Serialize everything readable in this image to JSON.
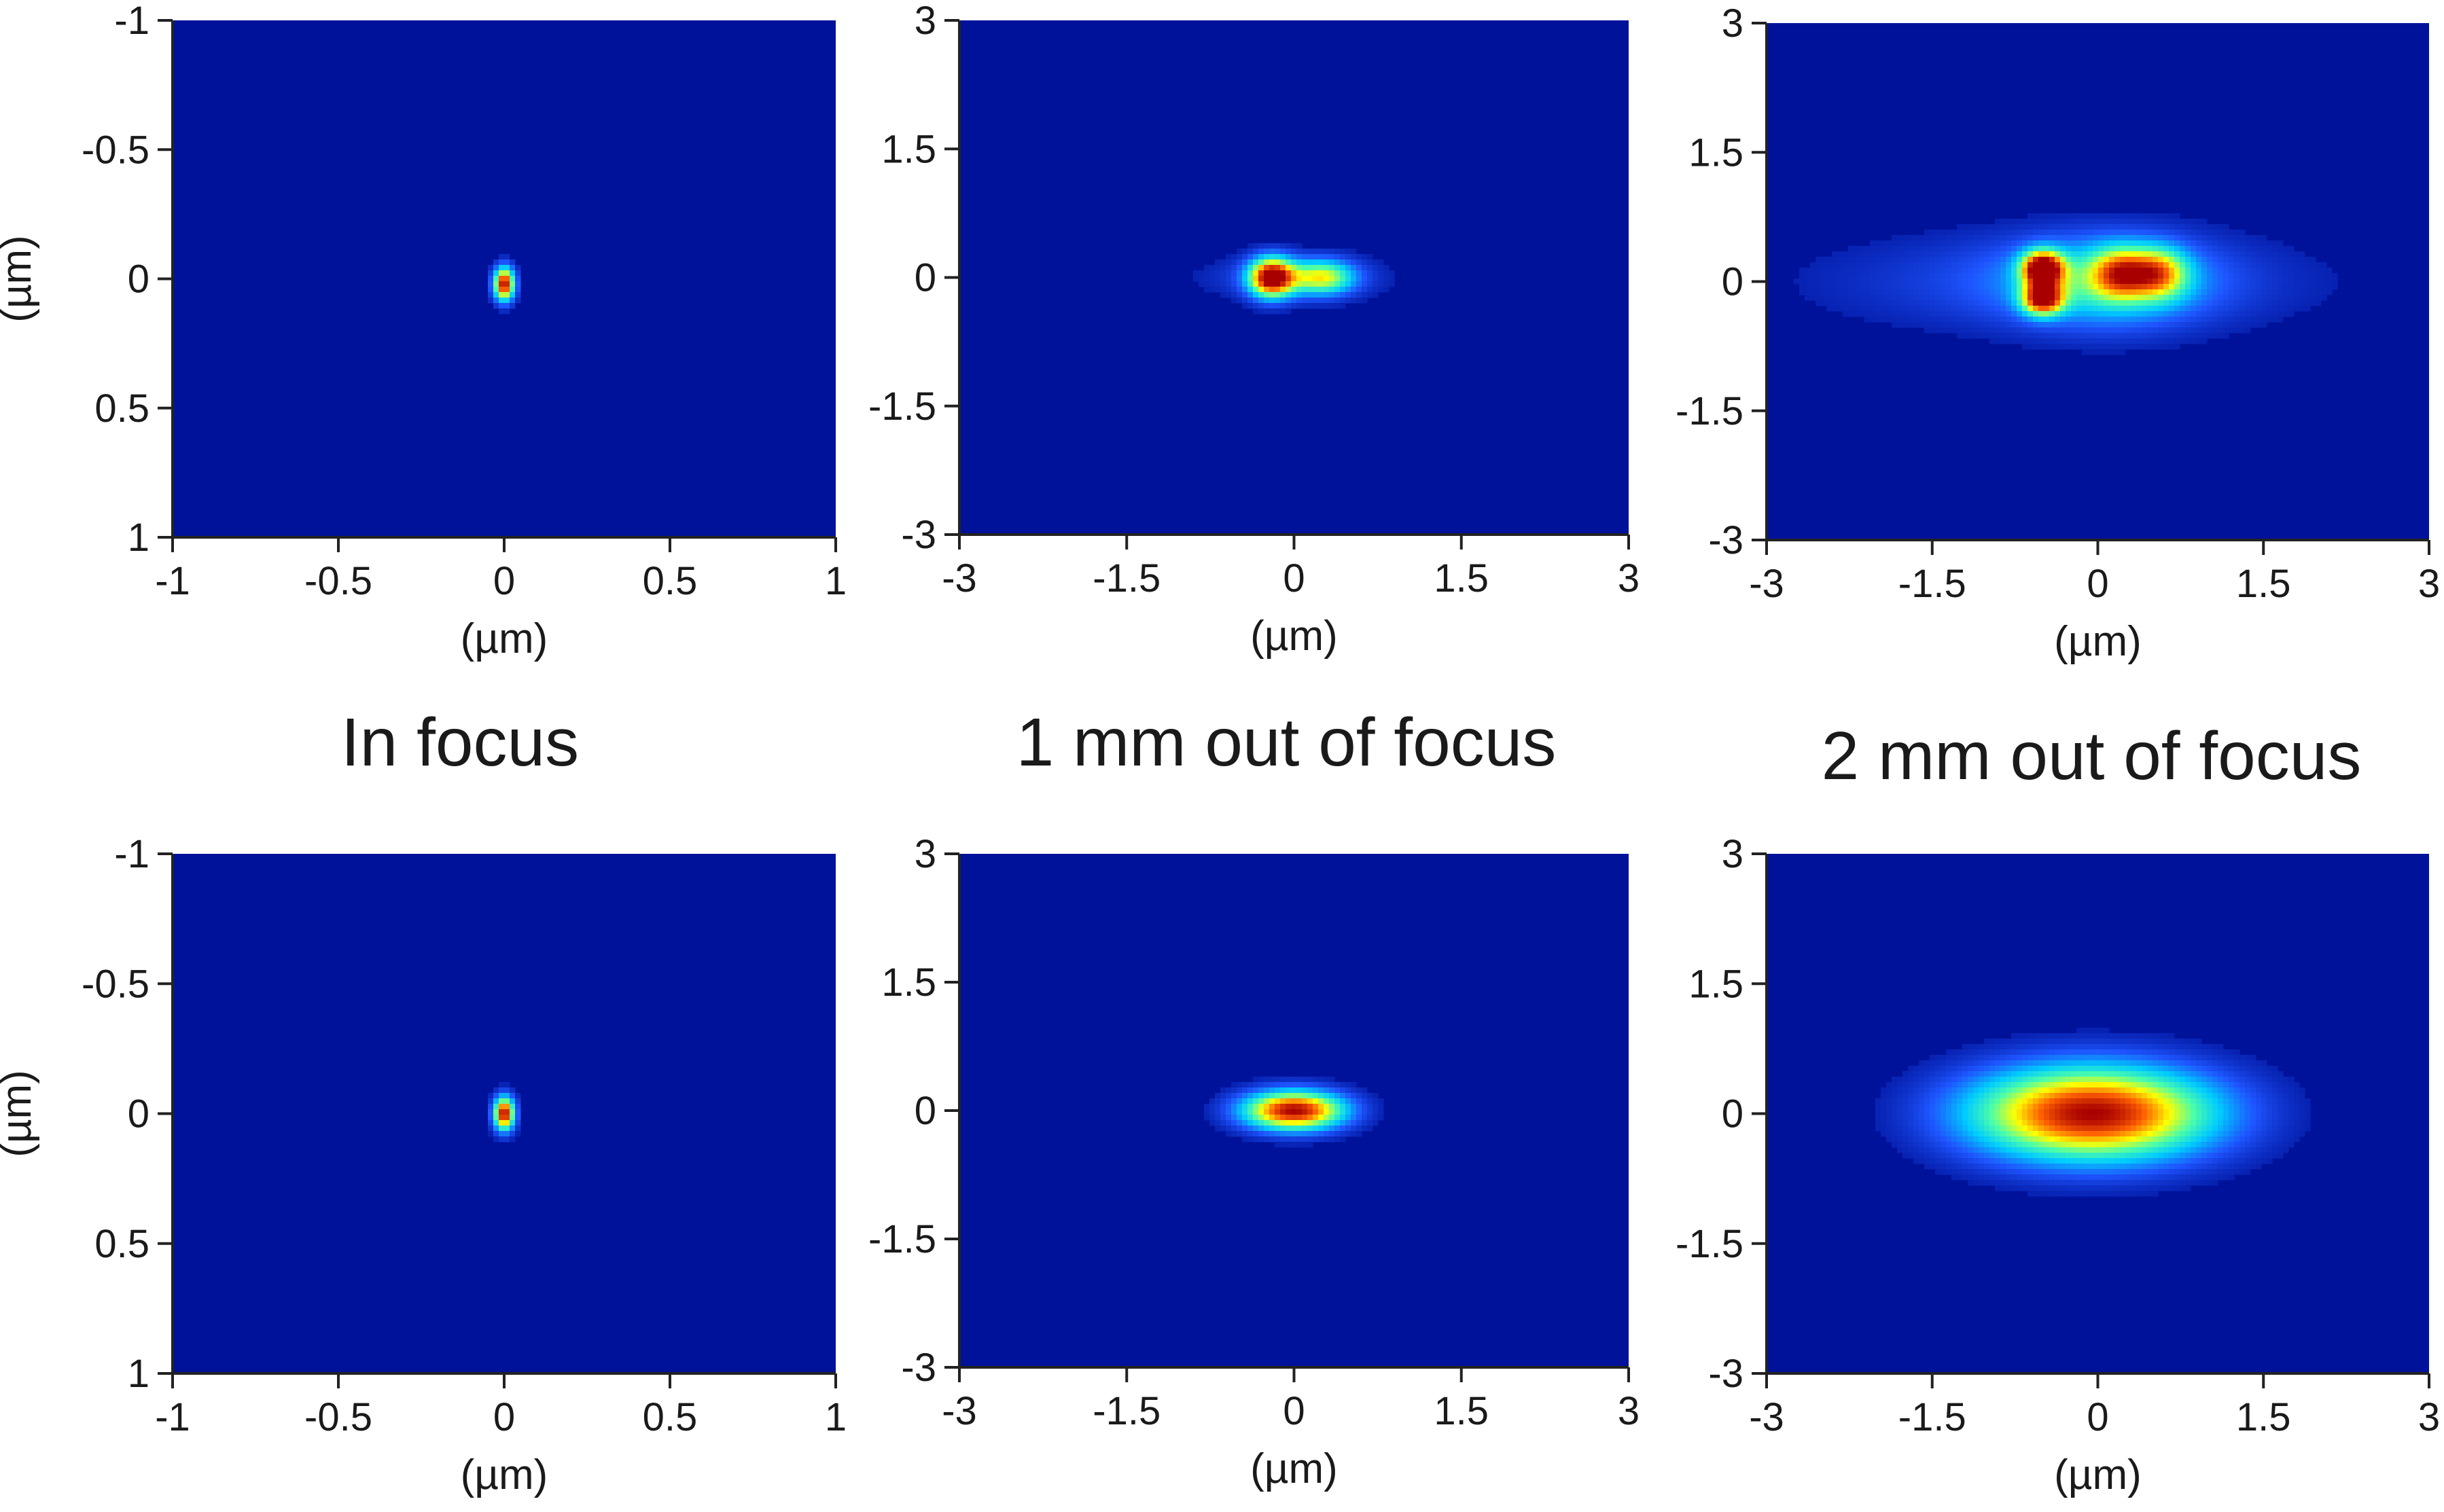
{
  "chart_data": [
    {
      "type": "heatmap",
      "title": "",
      "panel": "top-left",
      "xlabel": "(µm)",
      "ylabel": "(µm)",
      "xlim": [
        -1,
        1
      ],
      "ylim": [
        -1,
        1
      ],
      "y_inverted": true,
      "xticks": [
        "-1",
        "-0.5",
        "0",
        "0.5",
        "1"
      ],
      "yticks": [
        "-1",
        "-0.5",
        "0",
        "0.5",
        "1"
      ],
      "spots": [
        {
          "x": 0.0,
          "y": 0.02,
          "sx": 0.022,
          "sy": 0.045,
          "peak": 1.0
        }
      ]
    },
    {
      "type": "heatmap",
      "title": "",
      "panel": "top-middle",
      "xlabel": "(µm)",
      "ylabel": "",
      "xlim": [
        -3,
        3
      ],
      "ylim": [
        -3,
        3
      ],
      "y_inverted": false,
      "xticks": [
        "-3",
        "-1.5",
        "0",
        "1.5",
        "3"
      ],
      "yticks": [
        "3",
        "1.5",
        "0",
        "-1.5",
        "-3"
      ],
      "spots": [
        {
          "x": -0.2,
          "y": 0.0,
          "sx": 0.14,
          "sy": 0.16,
          "peak": 1.0
        },
        {
          "x": 0.25,
          "y": 0.0,
          "sx": 0.2,
          "sy": 0.14,
          "peak": 0.55
        },
        {
          "x": 0.0,
          "y": 0.0,
          "sx": 0.55,
          "sy": 0.18,
          "peak": 0.15
        }
      ]
    },
    {
      "type": "heatmap",
      "title": "",
      "panel": "top-right",
      "xlabel": "(µm)",
      "ylabel": "",
      "xlim": [
        -3,
        3
      ],
      "ylim": [
        -3,
        3
      ],
      "y_inverted": false,
      "xticks": [
        "-3",
        "-1.5",
        "0",
        "1.5",
        "3"
      ],
      "yticks": [
        "3",
        "1.5",
        "0",
        "-1.5",
        "-3"
      ],
      "spots": [
        {
          "x": -0.5,
          "y": 0.15,
          "sx": 0.13,
          "sy": 0.14,
          "peak": 1.0
        },
        {
          "x": -0.5,
          "y": -0.2,
          "sx": 0.13,
          "sy": 0.13,
          "peak": 0.85
        },
        {
          "x": 0.2,
          "y": 0.1,
          "sx": 0.18,
          "sy": 0.2,
          "peak": 0.5
        },
        {
          "x": 0.55,
          "y": 0.1,
          "sx": 0.18,
          "sy": 0.2,
          "peak": 0.5
        },
        {
          "x": 0.1,
          "y": 0.0,
          "sx": 0.6,
          "sy": 0.35,
          "peak": 0.35
        },
        {
          "x": -0.3,
          "y": 0.0,
          "sx": 1.5,
          "sy": 0.4,
          "peak": 0.15
        }
      ]
    },
    {
      "type": "heatmap",
      "title": "",
      "panel": "bottom-left",
      "xlabel": "(µm)",
      "ylabel": "(µm)",
      "xlim": [
        -1,
        1
      ],
      "ylim": [
        -1,
        1
      ],
      "y_inverted": true,
      "xticks": [
        "-1",
        "-0.5",
        "0",
        "0.5",
        "1"
      ],
      "yticks": [
        "-1",
        "-0.5",
        "0",
        "0.5",
        "1"
      ],
      "spots": [
        {
          "x": 0.0,
          "y": 0.0,
          "sx": 0.022,
          "sy": 0.045,
          "peak": 1.0
        }
      ]
    },
    {
      "type": "heatmap",
      "title": "",
      "panel": "bottom-middle",
      "xlabel": "(µm)",
      "ylabel": "",
      "xlim": [
        -3,
        3
      ],
      "ylim": [
        -3,
        3
      ],
      "y_inverted": false,
      "xticks": [
        "-3",
        "-1.5",
        "0",
        "1.5",
        "3"
      ],
      "yticks": [
        "3",
        "1.5",
        "0",
        "-1.5",
        "-3"
      ],
      "spots": [
        {
          "x": 0.0,
          "y": 0.0,
          "sx": 0.32,
          "sy": 0.16,
          "peak": 1.0
        }
      ]
    },
    {
      "type": "heatmap",
      "title": "",
      "panel": "bottom-right",
      "xlabel": "(µm)",
      "ylabel": "",
      "xlim": [
        -3,
        3
      ],
      "ylim": [
        -3,
        3
      ],
      "y_inverted": false,
      "xticks": [
        "-3",
        "-1.5",
        "0",
        "1.5",
        "3"
      ],
      "yticks": [
        "3",
        "1.5",
        "0",
        "-1.5",
        "-3"
      ],
      "spots": [
        {
          "x": -0.05,
          "y": 0.0,
          "sx": 0.78,
          "sy": 0.38,
          "peak": 1.0
        }
      ]
    }
  ],
  "column_captions": [
    "In focus",
    "1 mm out of focus",
    "2 mm out of focus"
  ],
  "colors": {
    "background": "#00129a",
    "colormap": [
      "#00129a",
      "#1e55ff",
      "#00ccff",
      "#4cffa8",
      "#ffff00",
      "#ff6000",
      "#a80000"
    ]
  }
}
